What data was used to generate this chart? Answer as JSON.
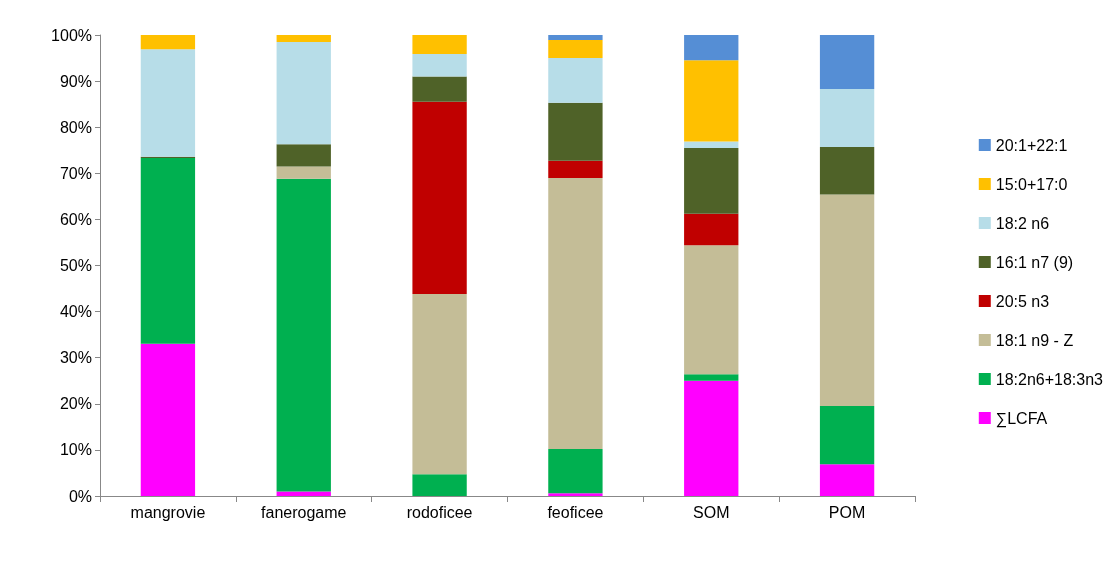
{
  "chart_data": {
    "type": "bar",
    "stacked": true,
    "categories": [
      "mangrovie",
      "fanerogame",
      "rodoficee",
      "feoficee",
      "SOM",
      "POM"
    ],
    "series": [
      {
        "name": "∑LCFA",
        "color": "#ff00ff",
        "values": [
          33,
          1,
          0,
          0.6,
          25,
          6.9
        ]
      },
      {
        "name": "18:2n6+18:3n3",
        "color": "#00b050",
        "values": [
          40.3,
          67.8,
          4.7,
          9.6,
          1.4,
          12.6
        ]
      },
      {
        "name": "18:1 n9 - Z",
        "color": "#c4bd97",
        "values": [
          0,
          2.7,
          39.1,
          58.8,
          28,
          45.9
        ]
      },
      {
        "name": "20:5 n3",
        "color": "#c00000",
        "values": [
          0,
          0,
          41.7,
          3.7,
          6.8,
          0
        ]
      },
      {
        "name": "16:1 n7 (9)",
        "color": "#4f6228",
        "values": [
          0.3,
          4.8,
          5.5,
          12.6,
          14.3,
          10.3
        ]
      },
      {
        "name": "18:2 n6",
        "color": "#b7dde8",
        "values": [
          23.3,
          22.2,
          4.9,
          9.7,
          1.4,
          12.6
        ]
      },
      {
        "name": "15:0+17:0",
        "color": "#ffc000",
        "values": [
          3.1,
          1.5,
          4.1,
          3.9,
          17.6,
          0
        ]
      },
      {
        "name": "20:1+22:1",
        "color": "#558ed5",
        "values": [
          0,
          0,
          0,
          1.1,
          5.5,
          11.7
        ]
      }
    ],
    "ylim": [
      0,
      100
    ],
    "yticks": [
      {
        "value": 0,
        "label": "0%"
      },
      {
        "value": 10,
        "label": "10%"
      },
      {
        "value": 20,
        "label": "20%"
      },
      {
        "value": 30,
        "label": "30%"
      },
      {
        "value": 40,
        "label": "40%"
      },
      {
        "value": 50,
        "label": "50%"
      },
      {
        "value": 60,
        "label": "60%"
      },
      {
        "value": 70,
        "label": "70%"
      },
      {
        "value": 80,
        "label": "80%"
      },
      {
        "value": 90,
        "label": "90%"
      },
      {
        "value": 100,
        "label": "100%"
      }
    ],
    "legend": "right"
  }
}
